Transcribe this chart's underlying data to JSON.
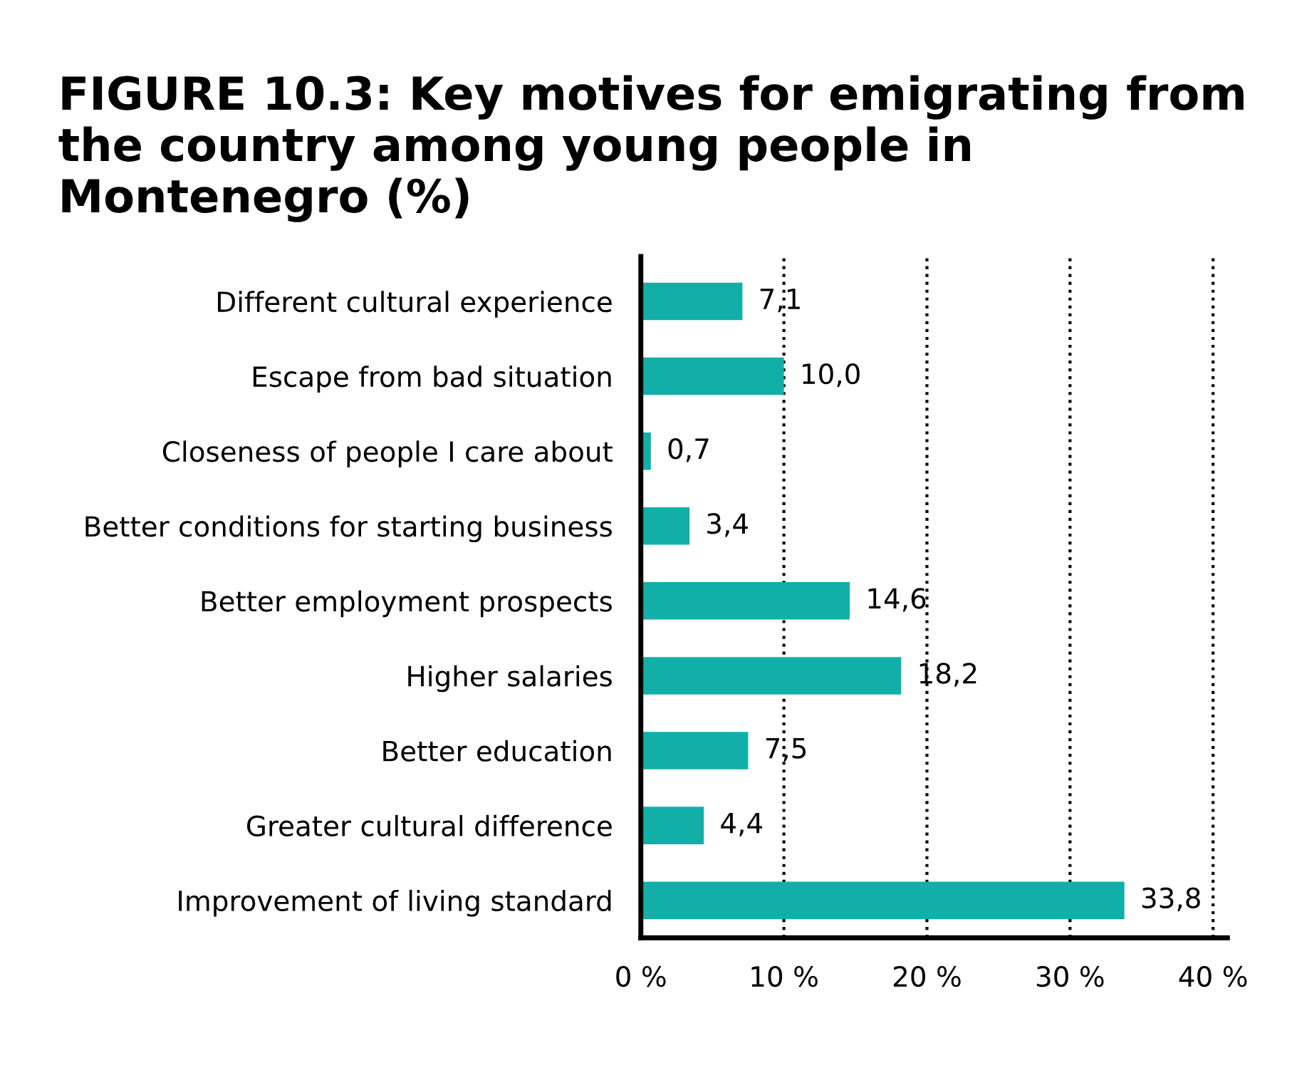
{
  "chart_data": {
    "type": "bar",
    "orientation": "horizontal",
    "title": "FIGURE 10.3: Key motives for emigrating from the country among young people in Montenegro (%)",
    "categories": [
      "Different cultural experience",
      "Escape from bad situation",
      "Closeness of people I care about",
      "Better conditions for starting business",
      "Better employment prospects",
      "Higher salaries",
      "Better education",
      "Greater cultural difference",
      "Improvement of living standard"
    ],
    "values": [
      7.1,
      10.0,
      0.7,
      3.4,
      14.6,
      18.2,
      7.5,
      4.4,
      33.8
    ],
    "value_labels": [
      "7,1",
      "10,0",
      "0,7",
      "3,4",
      "14,6",
      "18,2",
      "7,5",
      "4,4",
      "33,8"
    ],
    "color": "#12afa8",
    "xlim": [
      0,
      41
    ],
    "xticks": [
      {
        "value": 0,
        "label": "0 %"
      },
      {
        "value": 10,
        "label": "10 %"
      },
      {
        "value": 20,
        "label": "20 %"
      },
      {
        "value": 30,
        "label": "30 %"
      },
      {
        "value": 40,
        "label": "40 %"
      }
    ],
    "grid": "x",
    "line_style": "dotted"
  }
}
